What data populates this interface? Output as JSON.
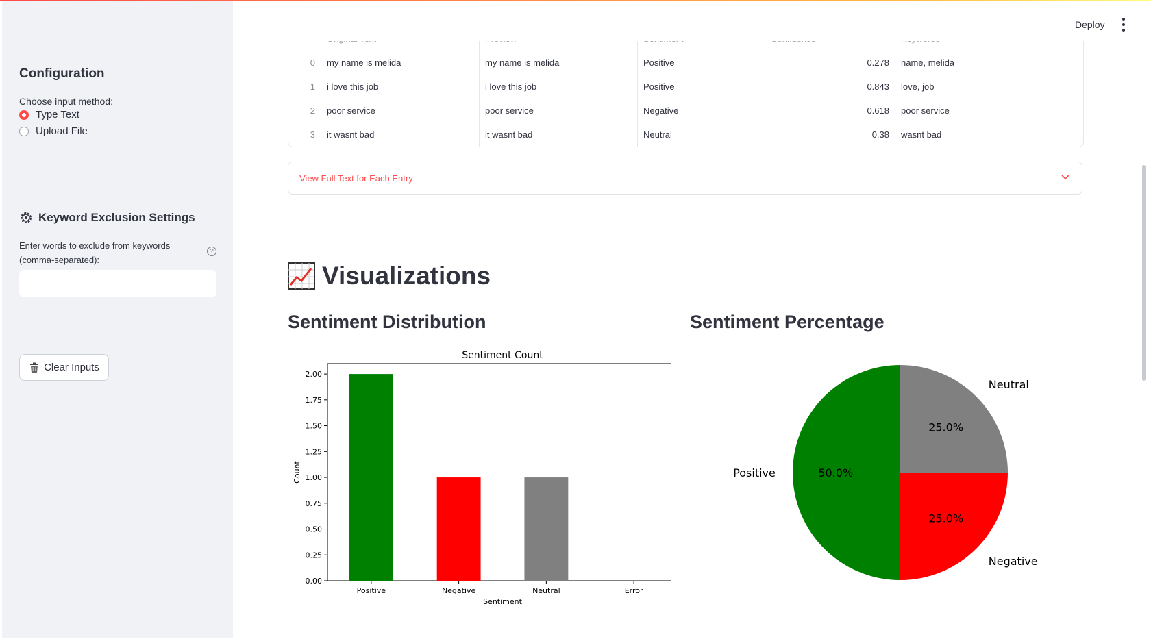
{
  "sidebar": {
    "title": "Configuration",
    "input_method_label": "Choose input method:",
    "options": [
      {
        "label": "Type Text",
        "selected": true
      },
      {
        "label": "Upload File",
        "selected": false
      }
    ],
    "exclusion_title": "Keyword Exclusion Settings",
    "exclusion_label": "Enter words to exclude from keywords (comma-separated):",
    "exclusion_value": "",
    "help_icon": "question-circle-icon",
    "clear_button_label": "Clear Inputs"
  },
  "header": {
    "deploy_label": "Deploy"
  },
  "table": {
    "columns": [
      "Original Text",
      "Preview",
      "Sentiment",
      "Confidence",
      "Keywords"
    ],
    "rows": [
      {
        "index": "0",
        "original": "my name is melida",
        "preview": "my name is melida",
        "sentiment": "Positive",
        "confidence": "0.278",
        "keywords": "name, melida"
      },
      {
        "index": "1",
        "original": "i love this job",
        "preview": "i love this job",
        "sentiment": "Positive",
        "confidence": "0.843",
        "keywords": "love, job"
      },
      {
        "index": "2",
        "original": "poor service",
        "preview": "poor service",
        "sentiment": "Negative",
        "confidence": "0.618",
        "keywords": "poor service"
      },
      {
        "index": "3",
        "original": "it wasnt bad",
        "preview": "it wasnt bad",
        "sentiment": "Neutral",
        "confidence": "0.38",
        "keywords": "wasnt bad"
      }
    ]
  },
  "expander_label": "View Full Text for Each Entry",
  "visualizations": {
    "title": "Visualizations",
    "bar_section_title": "Sentiment Distribution",
    "pie_section_title": "Sentiment Percentage"
  },
  "chart_data": [
    {
      "type": "bar",
      "title": "Sentiment Count",
      "xlabel": "Sentiment",
      "ylabel": "Count",
      "categories": [
        "Positive",
        "Negative",
        "Neutral",
        "Error"
      ],
      "values": [
        2,
        1,
        1,
        0
      ],
      "colors": [
        "#008000",
        "#ff0000",
        "#808080",
        "#000000"
      ],
      "ylim": [
        0,
        2.1
      ],
      "yticks": [
        "0.00",
        "0.25",
        "0.50",
        "0.75",
        "1.00",
        "1.25",
        "1.50",
        "1.75",
        "2.00"
      ],
      "grid": false
    },
    {
      "type": "pie",
      "labels": [
        "Neutral",
        "Negative",
        "Positive"
      ],
      "values": [
        25,
        25,
        50
      ],
      "pct_labels": [
        "25.0%",
        "25.0%",
        "50.0%"
      ],
      "colors": [
        "#808080",
        "#ff0000",
        "#008000"
      ]
    }
  ]
}
